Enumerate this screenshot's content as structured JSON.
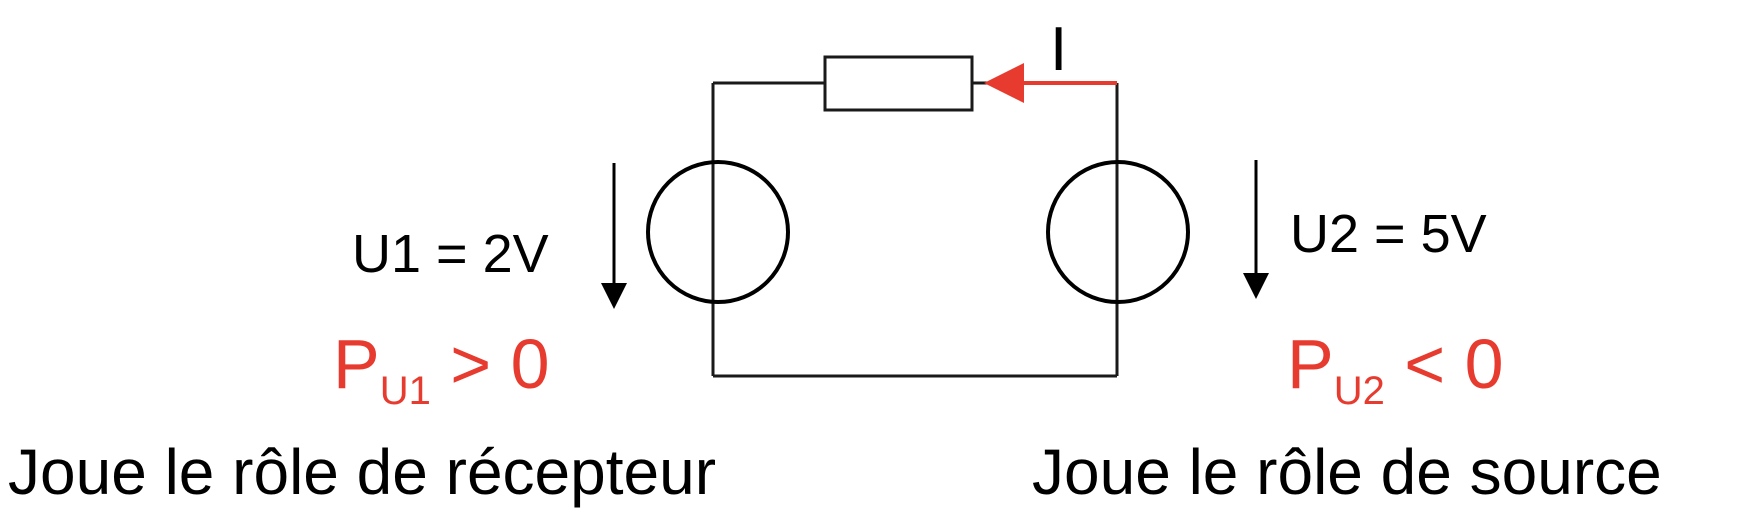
{
  "colors": {
    "accent": "#e63b2e",
    "ink": "#000000"
  },
  "current_label": "I",
  "left_source": {
    "voltage_label": "U1 = 2V",
    "power_symbol": "P",
    "power_subscript": "U1",
    "power_relation": " > 0",
    "role": "Joue le rôle de récepteur"
  },
  "right_source": {
    "voltage_label": "U2 = 5V",
    "power_symbol": "P",
    "power_subscript": "U2",
    "power_relation": " < 0",
    "role": "Joue le rôle de source"
  }
}
